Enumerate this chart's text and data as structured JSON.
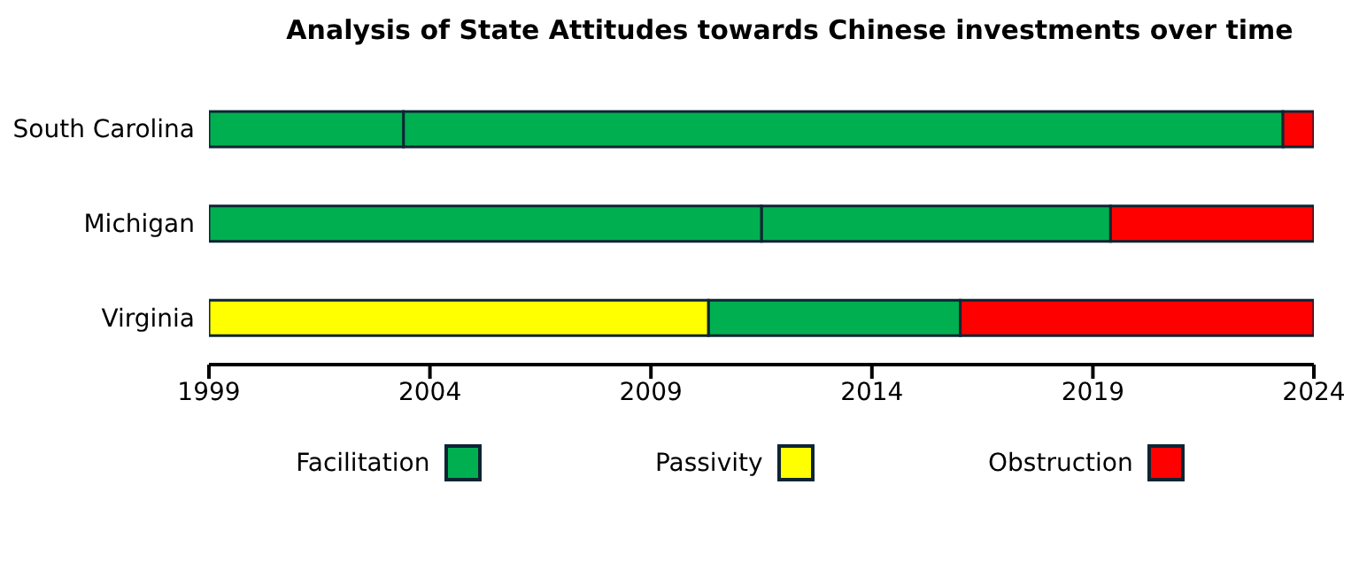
{
  "chart_data": {
    "type": "bar",
    "orientation": "horizontal",
    "title": "Analysis of State Attitudes towards Chinese investments over time",
    "categories": [
      "South Carolina",
      "Michigan",
      "Virginia"
    ],
    "xlim": [
      1999,
      2024
    ],
    "xticks": [
      1999,
      2004,
      2009,
      2014,
      2019,
      2024
    ],
    "legend": "bottom",
    "series": [
      {
        "name": "Facilitation",
        "color": "#00b050",
        "base": [
          2003.4,
          2011.5,
          2010.3
        ],
        "values": [
          19.9,
          7.9,
          5.7
        ]
      },
      {
        "name": "Passivity",
        "color": "#ffff00",
        "base": [
          null,
          null,
          1999
        ],
        "values": [
          null,
          null,
          11.3
        ]
      },
      {
        "name": "Obstruction",
        "color": "#ff0000",
        "base": [
          null,
          null,
          null
        ],
        "values": [
          null,
          null,
          null
        ]
      },
      {
        "color": "#00b050",
        "base": [
          1999,
          1999,
          null
        ],
        "values": [
          4.4,
          12.5,
          null
        ]
      },
      {
        "color": "#ff0000",
        "base": [
          2023.3,
          null,
          2016
        ],
        "values": [
          0.7,
          null,
          8
        ]
      },
      {
        "color": "#ff0000",
        "base": [
          null,
          2019.4,
          null
        ],
        "values": [
          null,
          4.6,
          null
        ]
      }
    ]
  }
}
